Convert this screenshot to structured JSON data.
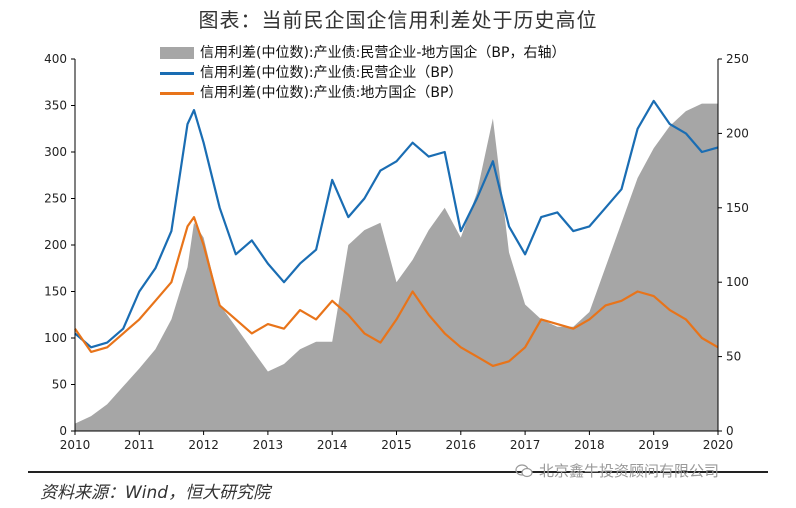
{
  "figure_title": "图表：当前民企国企信用利差处于历史高位",
  "source_note": "资料来源：Wind，恒大研究院",
  "watermark_text": "北京鑫牛投资顾问有限公司",
  "colors": {
    "area": "#a6a6a6",
    "private": "#1a6db3",
    "local_soe": "#e8741a",
    "axis": "#000000"
  },
  "chart_data": {
    "type": "line",
    "legend_position": "top",
    "grid": false,
    "x": [
      2010.0,
      2010.25,
      2010.5,
      2010.75,
      2011.0,
      2011.25,
      2011.5,
      2011.75,
      2011.85,
      2012.0,
      2012.25,
      2012.5,
      2012.75,
      2013.0,
      2013.25,
      2013.5,
      2013.75,
      2014.0,
      2014.25,
      2014.5,
      2014.75,
      2015.0,
      2015.25,
      2015.5,
      2015.75,
      2016.0,
      2016.25,
      2016.5,
      2016.75,
      2017.0,
      2017.25,
      2017.5,
      2017.75,
      2018.0,
      2018.25,
      2018.5,
      2018.75,
      2019.0,
      2019.25,
      2019.5,
      2019.75,
      2020.0
    ],
    "x_ticks": [
      2010,
      2011,
      2012,
      2013,
      2014,
      2015,
      2016,
      2017,
      2018,
      2019,
      2020
    ],
    "x_tick_labels": [
      "2010",
      "2011",
      "2012",
      "2013",
      "2014",
      "2015",
      "2016",
      "2017",
      "2018",
      "2019",
      "2020"
    ],
    "y_left_lim": [
      0,
      400
    ],
    "y_left_ticks": [
      "0",
      "50",
      "100",
      "150",
      "200",
      "250",
      "300",
      "350",
      "400"
    ],
    "y_right_lim": [
      0,
      250
    ],
    "y_right_ticks": [
      "0",
      "50",
      "100",
      "150",
      "200",
      "250"
    ],
    "series": [
      {
        "name": "信用利差(中位数):产业债:民营企业-地方国企（BP，右轴）",
        "type": "area",
        "axis": "right",
        "values": [
          5,
          10,
          18,
          30,
          42,
          55,
          75,
          110,
          140,
          130,
          85,
          70,
          55,
          40,
          45,
          55,
          60,
          60,
          125,
          135,
          140,
          100,
          115,
          135,
          150,
          130,
          160,
          210,
          120,
          85,
          75,
          70,
          70,
          80,
          110,
          140,
          170,
          190,
          205,
          215,
          220,
          220
        ]
      },
      {
        "name": "信用利差(中位数):产业债:民营企业（BP）",
        "type": "line",
        "axis": "left",
        "values": [
          105,
          90,
          95,
          110,
          150,
          175,
          215,
          330,
          345,
          310,
          240,
          190,
          205,
          180,
          160,
          180,
          195,
          270,
          230,
          250,
          280,
          290,
          310,
          295,
          300,
          215,
          250,
          290,
          220,
          190,
          230,
          235,
          215,
          220,
          240,
          260,
          325,
          355,
          330,
          320,
          300,
          305
        ]
      },
      {
        "name": "信用利差(中位数):产业债:地方国企（BP）",
        "type": "line",
        "axis": "left",
        "values": [
          110,
          85,
          90,
          105,
          120,
          140,
          160,
          220,
          230,
          200,
          135,
          120,
          105,
          115,
          110,
          130,
          120,
          140,
          125,
          105,
          95,
          120,
          150,
          125,
          105,
          90,
          80,
          70,
          75,
          90,
          120,
          115,
          110,
          120,
          135,
          140,
          150,
          145,
          130,
          120,
          100,
          90
        ]
      }
    ]
  }
}
